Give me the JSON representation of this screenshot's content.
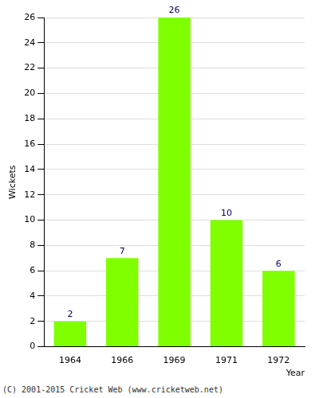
{
  "chart_data": {
    "type": "bar",
    "categories": [
      "1964",
      "1966",
      "1969",
      "1971",
      "1972"
    ],
    "values": [
      2,
      7,
      26,
      10,
      6
    ],
    "color": "#80ff00",
    "y_label": "Wickets",
    "x_label": "Year",
    "annotations": [
      "(C) 2001-2015 Cricket Web (www.cricketweb.net)"
    ],
    "ylim": [
      0,
      26
    ],
    "yticks": [
      0,
      2,
      4,
      6,
      8,
      10,
      12,
      14,
      16,
      18,
      20,
      22,
      24,
      26
    ],
    "grid": true,
    "data_labels": true
  }
}
